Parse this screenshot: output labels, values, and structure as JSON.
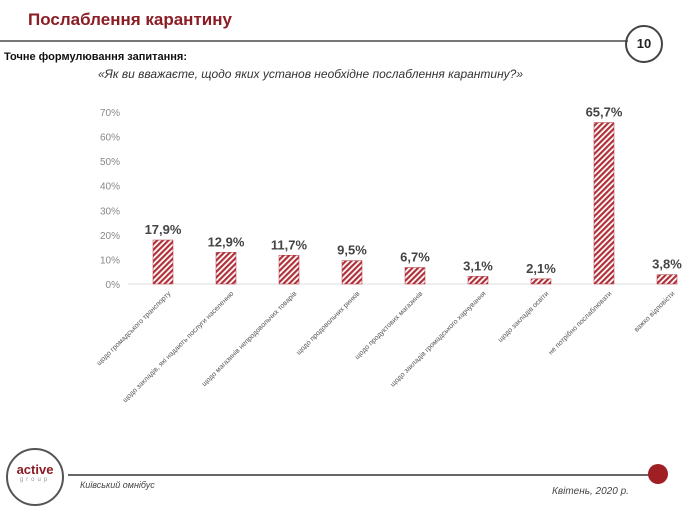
{
  "header": {
    "title": "Послаблення карантину",
    "page_number": "10",
    "subtitle": "Точне формулювання  запитання:",
    "question": "«Як ви вважаєте, щодо яких установ необхідне послаблення карантину?»"
  },
  "footer": {
    "logo_text": "active",
    "logo_sub": "group",
    "survey": "Київський омнібус",
    "date": "Квітень, 2020 р."
  },
  "colors": {
    "accent": "#8b1c24",
    "bar": "#b0313a"
  },
  "chart_data": {
    "type": "bar",
    "categories": [
      "щодо громадського транспорту",
      "щодо закладів, які надають послуги населенню",
      "щодо магазинів непродовольчих товарів",
      "щодо продовольчих ринків",
      "щодо продуктових магазинів",
      "щодо закладів громадського харчування",
      "щодо закладів освіти",
      "не потрібно послаблювати",
      "важко відповісти"
    ],
    "values": [
      17.9,
      12.9,
      11.7,
      9.5,
      6.7,
      3.1,
      2.1,
      65.7,
      3.8
    ],
    "data_labels": [
      "17,9%",
      "12,9%",
      "11,7%",
      "9,5%",
      "6,7%",
      "3,1%",
      "2,1%",
      "65,7%",
      "3,8%"
    ],
    "yticks": [
      "0%",
      "10%",
      "20%",
      "30%",
      "40%",
      "50%",
      "60%",
      "70%"
    ],
    "ylim": [
      0,
      70
    ],
    "grid": false,
    "bar_pattern": "hatched"
  }
}
